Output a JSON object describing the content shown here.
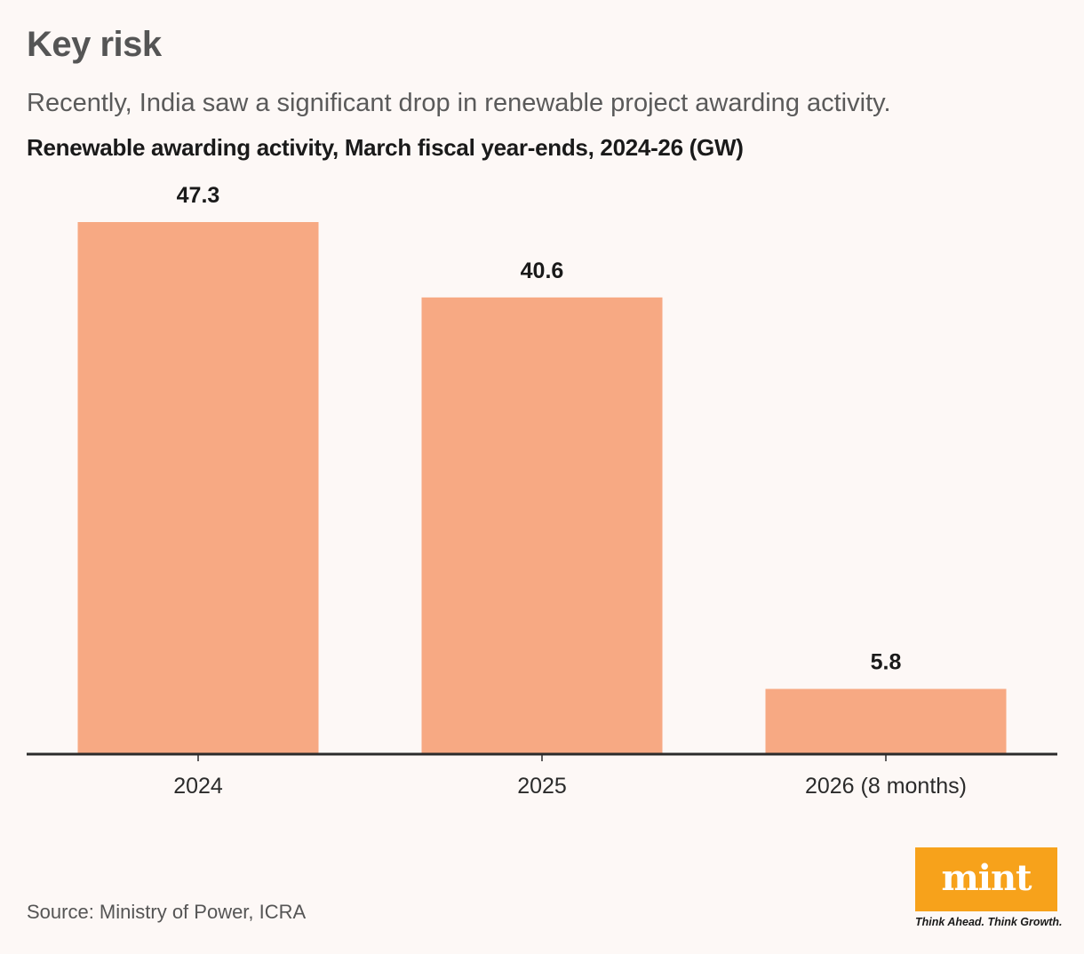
{
  "header": {
    "title": "Key risk",
    "subtitle": "Recently, India saw a significant drop in renewable project awarding activity.",
    "chart_heading": "Renewable awarding activity, March fiscal year-ends, 2024-26 (GW)"
  },
  "chart_data": {
    "type": "bar",
    "title": "Renewable awarding activity, March fiscal year-ends, 2024-26 (GW)",
    "categories": [
      "2024",
      "2025",
      "2026 (8 months)"
    ],
    "values": [
      47.3,
      40.6,
      5.8
    ],
    "data_labels": [
      "47.3",
      "40.6",
      "5.8"
    ],
    "xlabel": "",
    "ylabel": "",
    "ylim": [
      0,
      47.3
    ],
    "grid": false,
    "legend": "none",
    "bar_color": "#f7a983",
    "axis_color": "#2b2b2b"
  },
  "footer": {
    "source": "Source: Ministry of Power, ICRA",
    "logo_text": "mint",
    "logo_tagline": "Think Ahead. Think Growth.",
    "logo_color": "#f7a21b"
  }
}
